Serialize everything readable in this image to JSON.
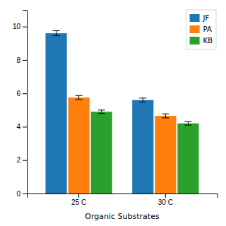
{
  "chart_data": {
    "type": "bar",
    "categories": [
      "25 C",
      "30 C"
    ],
    "series": [
      {
        "name": "JF",
        "values": [
          9.6,
          5.6
        ],
        "errors": [
          0.15,
          0.12
        ]
      },
      {
        "name": "PA",
        "values": [
          5.75,
          4.65
        ],
        "errors": [
          0.12,
          0.12
        ]
      },
      {
        "name": "KB",
        "values": [
          4.9,
          4.2
        ],
        "errors": [
          0.1,
          0.1
        ]
      }
    ],
    "xlabel": "Organic Substrates",
    "ylim": [
      0,
      11
    ],
    "yticks": [
      0,
      2,
      4,
      6,
      8,
      10
    ],
    "grid": false,
    "legend": "upper right"
  }
}
